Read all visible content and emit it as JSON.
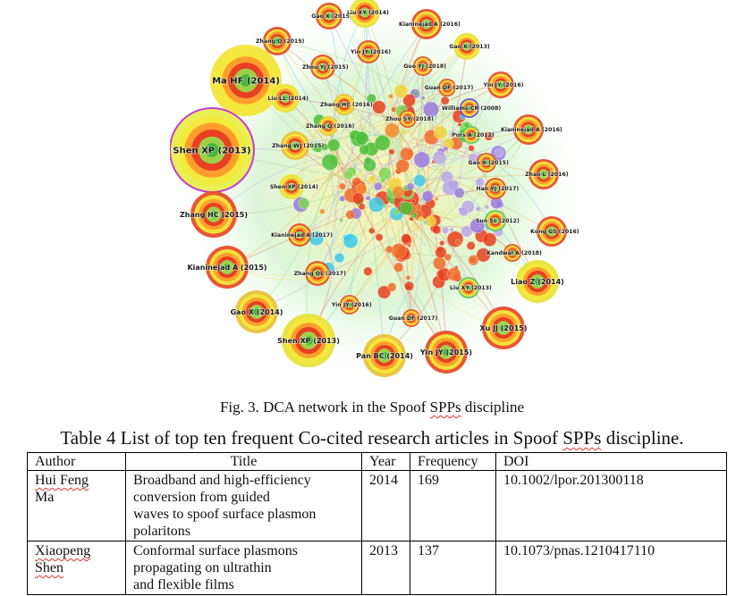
{
  "network": {
    "nodes": [
      {
        "label": "Ma HF (2014)",
        "color": "#f3e63a"
      },
      {
        "label": "Shen XP (2013)",
        "color": "#e8ef4a"
      },
      {
        "label": "Gao X (2015)",
        "color": "#e84d2b"
      },
      {
        "label": "Liu XY (2014)",
        "color": "#e9e23a"
      },
      {
        "label": "Kianinejad A (2016)",
        "color": "#e84d2b"
      },
      {
        "label": "Zhang Q (2015)",
        "color": "#e84d2b"
      },
      {
        "label": "Gao X (2013)",
        "color": "#e9e23a"
      },
      {
        "label": "Zhou YJ (2015)",
        "color": "#e84d2b"
      },
      {
        "label": "Yin JY (2016)",
        "color": "#e84d2b"
      },
      {
        "label": "Guo YJ (2018)",
        "color": "#e84d2b"
      },
      {
        "label": "Yin JY (2016)",
        "color": "#e84d2b"
      },
      {
        "label": "Guan DF (2017)",
        "color": "#e84d2b"
      },
      {
        "label": "Liu LL (2014)",
        "color": "#e9e23a"
      },
      {
        "label": "Zhang HC (2016)",
        "color": "#e8c23a"
      },
      {
        "label": "Williams CR (2008)",
        "color": "#6a4ad8"
      },
      {
        "label": "Kianinejad A (2016)",
        "color": "#e84d2b"
      },
      {
        "label": "Zhang Q (2016)",
        "color": "#e8c23a"
      },
      {
        "label": "Zhou SY (2018)",
        "color": "#e84d2b"
      },
      {
        "label": "Pors A (2012)",
        "color": "#62c46a"
      },
      {
        "label": "Zhang WJ (2015)",
        "color": "#e8c23a"
      },
      {
        "label": "Gao X (2015)",
        "color": "#e84d2b"
      },
      {
        "label": "Zhao L (2016)",
        "color": "#e84d2b"
      },
      {
        "label": "Shen XP (2014)",
        "color": "#e9e23a"
      },
      {
        "label": "Han YJ (2017)",
        "color": "#e84d2b"
      },
      {
        "label": "Zhang HC (2015)",
        "color": "#e84d2b"
      },
      {
        "label": "Sun SL (2012)",
        "color": "#62c46a"
      },
      {
        "label": "Kianinejad A (2017)",
        "color": "#e84d2b"
      },
      {
        "label": "Kong GS (2016)",
        "color": "#e84d2b"
      },
      {
        "label": "Kandwal A (2018)",
        "color": "#e84d2b"
      },
      {
        "label": "Kianinejad A (2015)",
        "color": "#e84d2b"
      },
      {
        "label": "Zhang QL (2017)",
        "color": "#e84d2b"
      },
      {
        "label": "Liao Z (2014)",
        "color": "#e9e23a"
      },
      {
        "label": "Liu XY (2013)",
        "color": "#62c46a"
      },
      {
        "label": "Yin JY (2016)",
        "color": "#e84d2b"
      },
      {
        "label": "Gao X (2014)",
        "color": "#e8c23a"
      },
      {
        "label": "Guan DF (2017)",
        "color": "#e84d2b"
      },
      {
        "label": "Xu JJ (2015)",
        "color": "#e84d2b"
      },
      {
        "label": "Shen XP (2013)",
        "color": "#e9e23a"
      },
      {
        "label": "Pan BC (2014)",
        "color": "#e8c23a"
      },
      {
        "label": "Yin JY (2015)",
        "color": "#e84d2b"
      }
    ]
  },
  "figure_caption": "Fig. 3. DCA network in the Spoof SPPs discipline",
  "table": {
    "title": "Table 4 List of top ten frequent Co-cited research articles in Spoof SPPs discipline.",
    "headers": {
      "author": "Author",
      "title": "Title",
      "year": "Year",
      "frequency": "Frequency",
      "doi": "DOI"
    },
    "rows": [
      {
        "author_1": "Hui Feng",
        "author_2": "Ma",
        "title_1": "Broadband and high-efficiency",
        "title_2": "conversion from guided",
        "title_3": "waves to spoof surface plasmon",
        "title_4": "polaritons",
        "year": "2014",
        "frequency": "169",
        "doi": "10.1002/lpor.201300118"
      },
      {
        "author_1": "Xiaopeng",
        "author_2": "Shen",
        "title_1": "Conformal surface plasmons",
        "title_2": "propagating on ultrathin",
        "title_3": "and flexible films",
        "year": "2013",
        "frequency": "137",
        "doi": "10.1073/pnas.1210417110"
      }
    ]
  }
}
